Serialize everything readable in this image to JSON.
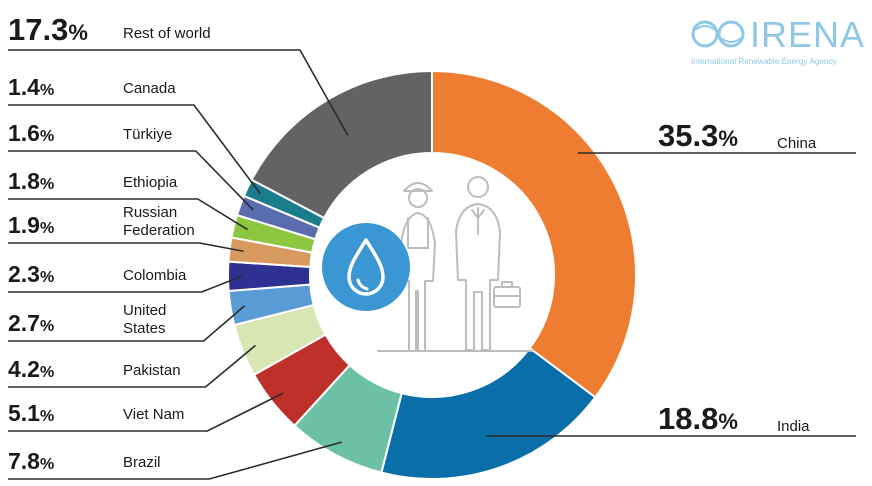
{
  "logo": {
    "name": "IRENA",
    "tagline": "International Renewable Energy Agency"
  },
  "chart_data": {
    "type": "donut",
    "title": "",
    "unit": "%",
    "start": "12 o'clock, clockwise",
    "slices": [
      {
        "label": "China",
        "value": 35.3,
        "color": "#EE7D31"
      },
      {
        "label": "India",
        "value": 18.8,
        "color": "#0A6EA8"
      },
      {
        "label": "Brazil",
        "value": 7.8,
        "color": "#6CC0A6"
      },
      {
        "label": "Viet Nam",
        "value": 5.1,
        "color": "#C0302B"
      },
      {
        "label": "Pakistan",
        "value": 4.2,
        "color": "#D8E6B4"
      },
      {
        "label": "United States",
        "value": 2.7,
        "color": "#5B9BD5"
      },
      {
        "label": "Colombia",
        "value": 2.3,
        "color": "#2E3192"
      },
      {
        "label": "Russian Federation",
        "value": 1.9,
        "color": "#D99A60"
      },
      {
        "label": "Ethiopia",
        "value": 1.8,
        "color": "#8DC63F"
      },
      {
        "label": "Türkiye",
        "value": 1.6,
        "color": "#5A6CB0"
      },
      {
        "label": "Canada",
        "value": 1.4,
        "color": "#1B7C8C"
      },
      {
        "label": "Rest of world",
        "value": 17.3,
        "color": "#636363"
      }
    ]
  },
  "center_icon": "water-drop-icon",
  "people_icon": "workers-illustration"
}
